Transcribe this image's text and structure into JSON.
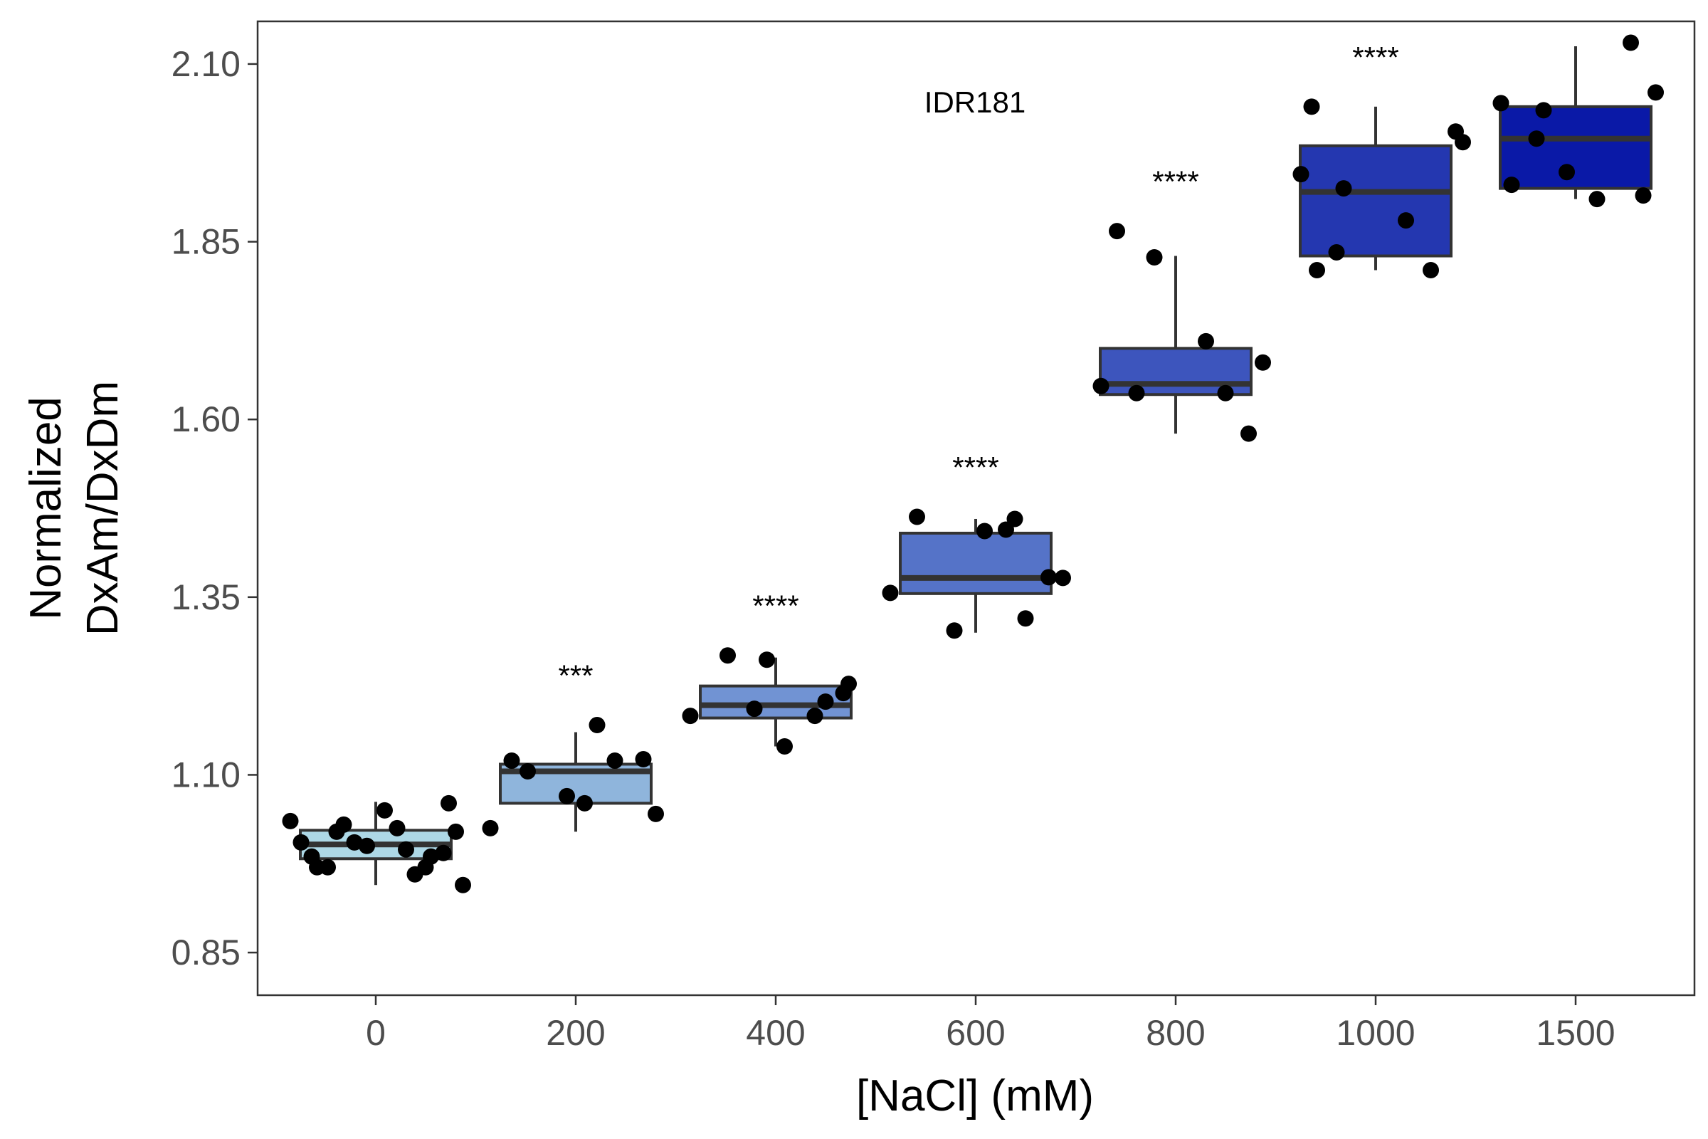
{
  "chart_data": {
    "type": "box",
    "title": "",
    "annotation": "IDR181",
    "xlabel": "[NaCl] (mM)",
    "ylabel_lines": [
      "Normalized",
      "DxAm/DxDm"
    ],
    "ylim": [
      0.79,
      2.16
    ],
    "yticks": [
      0.85,
      1.1,
      1.35,
      1.6,
      1.85,
      2.1
    ],
    "ytick_labels": [
      "0.85",
      "1.10",
      "1.35",
      "1.60",
      "1.85",
      "2.10"
    ],
    "categories": [
      "0",
      "200",
      "400",
      "600",
      "800",
      "1000",
      "1500"
    ],
    "grid": false,
    "colors": {
      "fills": [
        "#add8e6",
        "#8fb5dc",
        "#7193d3",
        "#5573c8",
        "#3d55bd",
        "#2437b0",
        "#0a19a7"
      ],
      "box_edge": "#333333",
      "points": "#000000",
      "panel_border": "#333333",
      "text": "#000000",
      "tick_text": "#4d4d4d"
    },
    "boxes": [
      {
        "category": "0",
        "whisker_low": 0.945,
        "q1": 0.982,
        "median": 1.002,
        "q3": 1.022,
        "whisker_high": 1.062,
        "significance": "",
        "points": [
          1.005,
          0.985,
          1.03,
          1.02,
          0.985,
          1.025,
          1.0,
          0.99,
          0.97,
          0.96,
          1.035,
          1.05,
          1.06,
          1.005,
          0.97,
          0.97,
          0.995,
          0.945,
          1.02
        ]
      },
      {
        "category": "200",
        "whisker_low": 1.02,
        "q1": 1.06,
        "median": 1.105,
        "q3": 1.115,
        "whisker_high": 1.16,
        "significance": "***",
        "points": [
          1.045,
          1.12,
          1.17,
          1.07,
          1.122,
          1.105,
          1.12,
          1.025,
          1.06
        ]
      },
      {
        "category": "400",
        "whisker_low": 1.14,
        "q1": 1.18,
        "median": 1.198,
        "q3": 1.225,
        "whisker_high": 1.265,
        "significance": "****",
        "points": [
          1.262,
          1.215,
          1.268,
          1.183,
          1.183,
          1.14,
          1.228,
          1.193,
          1.203
        ]
      },
      {
        "category": "600",
        "whisker_low": 1.3,
        "q1": 1.355,
        "median": 1.377,
        "q3": 1.44,
        "whisker_high": 1.46,
        "significance": "****",
        "points": [
          1.46,
          1.356,
          1.443,
          1.378,
          1.303,
          1.32,
          1.463,
          1.445,
          1.377
        ]
      },
      {
        "category": "800",
        "whisker_low": 1.58,
        "q1": 1.635,
        "median": 1.65,
        "q3": 1.7,
        "whisker_high": 1.83,
        "significance": "****",
        "points": [
          1.58,
          1.828,
          1.637,
          1.865,
          1.71,
          1.68,
          1.637,
          1.647
        ]
      },
      {
        "category": "1000",
        "whisker_low": 1.81,
        "q1": 1.83,
        "median": 1.92,
        "q3": 1.985,
        "whisker_high": 2.04,
        "significance": "****",
        "points": [
          1.81,
          1.88,
          1.99,
          1.835,
          1.945,
          1.81,
          1.925,
          2.005,
          2.04
        ]
      },
      {
        "category": "1500",
        "whisker_low": 1.91,
        "q1": 1.925,
        "median": 1.995,
        "q3": 2.04,
        "whisker_high": 2.125,
        "significance": "",
        "points": [
          1.995,
          2.045,
          2.13,
          2.035,
          2.06,
          1.93,
          1.91,
          1.948,
          1.915
        ]
      }
    ]
  }
}
